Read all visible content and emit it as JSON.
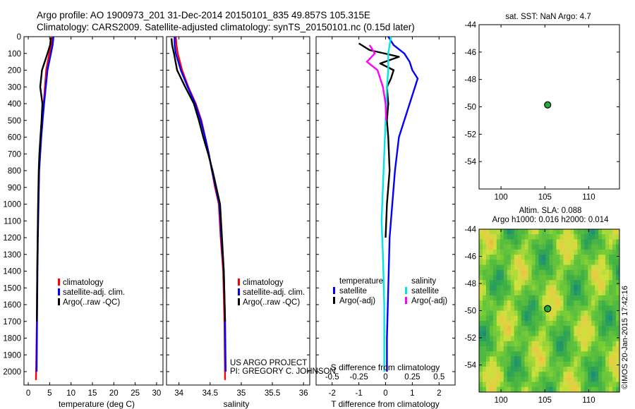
{
  "header": {
    "title_line1": "Argo profile: AO 1900973_201 31-Dec-2014 20150101_835 49.857S 105.315E",
    "title_line2": "Climatology: CARS2009. Satellite-adjusted climatology: synTS_20150101.nc (0.15d later)"
  },
  "colors": {
    "climatology": "#ff0000",
    "satellite": "#0000ff",
    "argo": "#000000",
    "sal_satellite": "#00e5e5",
    "sal_argo": "#ff00ff",
    "marker": "#22aa33"
  },
  "depth_axis": {
    "ticks": [
      0,
      100,
      200,
      300,
      400,
      500,
      600,
      700,
      800,
      900,
      1000,
      1100,
      1200,
      1300,
      1400,
      1500,
      1600,
      1700,
      1800,
      1900,
      2000
    ],
    "range": [
      0,
      2080
    ]
  },
  "chart_data": [
    {
      "id": "temperature",
      "type": "line",
      "xlabel": "temperature (deg C)",
      "xlim": [
        -1,
        31.5
      ],
      "xticks": [
        0,
        5,
        10,
        15,
        20,
        25,
        30
      ],
      "xtick_labels": [
        "0",
        "5",
        "10",
        "15",
        "20",
        "25",
        "30"
      ],
      "legend": [
        "climatology",
        "satellite-adj. clim.",
        "Argo(..raw -QC)"
      ],
      "legend_placement": "lower-middle",
      "series": [
        {
          "name": "climatology",
          "color_key": "climatology",
          "x": [
            5.6,
            5.4,
            4.9,
            4.2,
            3.9,
            3.6,
            3.3,
            3.0,
            2.75,
            2.5,
            2.35,
            2.2,
            2.1,
            2.0,
            1.8
          ],
          "depth": [
            0,
            50,
            100,
            200,
            300,
            400,
            500,
            600,
            700,
            800,
            1000,
            1200,
            1400,
            1700,
            2050
          ]
        },
        {
          "name": "satellite-adj. clim.",
          "color_key": "satellite",
          "x": [
            5.9,
            5.7,
            5.3,
            4.5,
            4.1,
            3.7,
            3.35,
            3.05,
            2.8,
            2.55,
            2.4,
            2.25,
            2.15,
            2.05,
            1.95
          ],
          "depth": [
            0,
            50,
            100,
            200,
            300,
            400,
            500,
            600,
            700,
            800,
            1000,
            1200,
            1400,
            1700,
            2000
          ]
        },
        {
          "name": "Argo(..raw -QC)",
          "color_key": "argo",
          "x": [
            5.3,
            5.1,
            4.5,
            3.2,
            2.8,
            3.3,
            3.1,
            2.85,
            2.6,
            2.45,
            2.3,
            2.2,
            2.1,
            2.0
          ],
          "depth": [
            5,
            50,
            100,
            200,
            300,
            400,
            500,
            600,
            700,
            800,
            1000,
            1200,
            1400,
            1700
          ]
        }
      ]
    },
    {
      "id": "salinity",
      "type": "line",
      "xlabel": "salinity",
      "xlim": [
        33.8,
        36.1
      ],
      "xticks": [
        34,
        34.5,
        35,
        35.5,
        36
      ],
      "xtick_labels": [
        "34",
        "34.5",
        "35",
        "35.5",
        "36"
      ],
      "legend": [
        "climatology",
        "satellite-adj. clim.",
        "Argo(..raw -QC)"
      ],
      "legend_placement": "lower-right",
      "annotation": [
        "US ARGO PROJECT",
        "PI: GREGORY C. JOHNSON"
      ],
      "series": [
        {
          "name": "climatology",
          "color_key": "climatology",
          "x": [
            33.95,
            33.96,
            33.98,
            34.05,
            34.15,
            34.27,
            34.36,
            34.42,
            34.48,
            34.53,
            34.58,
            34.64,
            34.67,
            34.71,
            34.73,
            34.74
          ],
          "depth": [
            0,
            50,
            100,
            200,
            300,
            400,
            500,
            600,
            700,
            800,
            900,
            1000,
            1200,
            1400,
            1700,
            2050
          ]
        },
        {
          "name": "satellite-adj. clim.",
          "color_key": "satellite",
          "x": [
            33.93,
            33.93,
            33.95,
            34.03,
            34.14,
            34.26,
            34.35,
            34.42,
            34.48,
            34.53,
            34.59,
            34.65,
            34.68,
            34.72,
            34.74,
            34.75
          ],
          "depth": [
            0,
            50,
            100,
            200,
            300,
            400,
            500,
            600,
            700,
            800,
            900,
            1000,
            1200,
            1400,
            1700,
            2000
          ]
        },
        {
          "name": "Argo(..raw -QC)",
          "color_key": "argo",
          "x": [
            33.88,
            33.89,
            33.92,
            33.97,
            34.1,
            34.24,
            34.32,
            34.39,
            34.47,
            34.54,
            34.6,
            34.66,
            34.69,
            34.72,
            34.74
          ],
          "depth": [
            10,
            50,
            100,
            200,
            300,
            400,
            500,
            600,
            700,
            800,
            900,
            1000,
            1200,
            1400,
            1700
          ]
        }
      ]
    },
    {
      "id": "difference",
      "type": "line",
      "xlabel": "T difference from climatology",
      "x2label": "S difference from climatology",
      "xlim": [
        -2.6,
        2.6
      ],
      "xticks": [
        -2,
        -1,
        0,
        1,
        2
      ],
      "xtick_labels": [
        "-2",
        "-1",
        "0",
        "1",
        "2"
      ],
      "x2ticks": [
        -2,
        -1,
        0,
        1,
        2
      ],
      "x2tick_labels": [
        "-0.5",
        "-0.25",
        "0",
        "0.25",
        "0.5"
      ],
      "legend_headers": [
        "temperature",
        "salinity"
      ],
      "legend": [
        "satellite",
        "Argo(-adj)",
        "satellite",
        "Argo(-adj)"
      ],
      "legend_placement": "lower-middle",
      "series": [
        {
          "name": "temperature satellite",
          "color_key": "satellite",
          "x": [
            0.1,
            0.3,
            0.7,
            0.9,
            1.0,
            1.2,
            1.1,
            0.9,
            0.7,
            0.5,
            0.35,
            0.25,
            0.15,
            0.1,
            0.05,
            0.05
          ],
          "depth": [
            0,
            50,
            100,
            150,
            200,
            250,
            300,
            400,
            500,
            600,
            800,
            1000,
            1200,
            1500,
            1800,
            2000
          ]
        },
        {
          "name": "temperature Argo(-adj)",
          "color_key": "argo",
          "x": [
            -1.0,
            -0.6,
            0.5,
            -0.2,
            0.3,
            0.2,
            0.05,
            0.1,
            0.05,
            0.1,
            0.15,
            0.05,
            0.0
          ],
          "depth": [
            40,
            80,
            120,
            160,
            200,
            250,
            300,
            400,
            500,
            600,
            800,
            1000,
            1200
          ]
        },
        {
          "name": "salinity satellite",
          "color_key": "sal_satellite",
          "x": [
            0.2,
            0.1,
            0.1,
            0.05,
            0.0,
            -0.05,
            -0.1,
            -0.15,
            -0.1,
            -0.05,
            -0.05
          ],
          "depth": [
            0,
            100,
            200,
            300,
            500,
            700,
            900,
            1100,
            1300,
            1600,
            2000
          ]
        },
        {
          "name": "salinity Argo(-adj)",
          "color_key": "sal_argo",
          "x": [
            -0.6,
            -0.4,
            -0.7,
            -0.3,
            -0.2,
            -0.1,
            0.0,
            0.02
          ],
          "depth": [
            50,
            100,
            150,
            200,
            250,
            300,
            400,
            500
          ]
        }
      ]
    },
    {
      "id": "sst_map",
      "type": "scatter",
      "title": "sat. SST: NaN Argo: 4.7",
      "xlim": [
        97.5,
        113.5
      ],
      "ylim": [
        -56,
        -44
      ],
      "xticks": [
        100,
        105,
        110
      ],
      "yticks": [
        -44,
        -46,
        -48,
        -50,
        -52,
        -54
      ],
      "xtick_labels": [
        "100",
        "105",
        "110"
      ],
      "ytick_labels": [
        "-44",
        "-46",
        "-48",
        "-50",
        "-52",
        "-54"
      ],
      "points": [
        {
          "lon": 105.315,
          "lat": -49.857
        }
      ]
    },
    {
      "id": "ssh_map",
      "type": "heatmap",
      "title_line1": "Altim. SLA: 0.088",
      "title_line2": "Argo h1000: 0.016 h2000: 0.014",
      "xlim": [
        97.5,
        113.5
      ],
      "ylim": [
        -56,
        -44
      ],
      "xticks": [
        100,
        105,
        110
      ],
      "yticks": [
        -44,
        -46,
        -48,
        -50,
        -52,
        -54
      ],
      "xtick_labels": [
        "100",
        "105",
        "110"
      ],
      "ytick_labels": [
        "-44",
        "-46",
        "-48",
        "-50",
        "-52",
        "-54"
      ],
      "points": [
        {
          "lon": 105.315,
          "lat": -49.857
        }
      ]
    }
  ],
  "credit": "©IMOS 20-Jan-2015 17:42:16"
}
